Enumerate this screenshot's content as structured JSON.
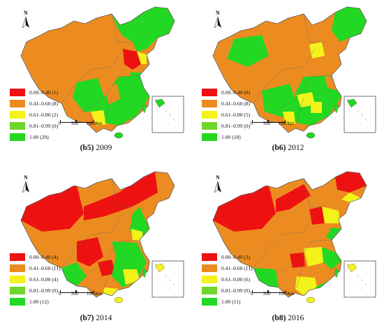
{
  "colors": {
    "c1": "#ee1111",
    "c2": "#ec8c20",
    "c3": "#f3f31a",
    "c4": "#6fd62a",
    "c5": "#22d822",
    "boundary": "#5a5a5a",
    "water": "#ffffff"
  },
  "north_label": "N",
  "panels": [
    {
      "caption_id": "(b5)",
      "caption_year": "2009",
      "legend": [
        {
          "label": "0.00–0.40 (1)",
          "color": "#ee1111"
        },
        {
          "label": "0.41–0.60 (8)",
          "color": "#ec8c20"
        },
        {
          "label": "0.61–0.80 (2)",
          "color": "#f3f31a"
        },
        {
          "label": "0.81–0.99 (0)",
          "color": "#6fd62a"
        },
        {
          "label": "1.00 (20)",
          "color": "#22d822"
        }
      ],
      "scale": [
        "0",
        "500",
        "1000km"
      ]
    },
    {
      "caption_id": "(b6)",
      "caption_year": "2012",
      "legend": [
        {
          "label": "0.00–0.40 (0)",
          "color": "#ee1111"
        },
        {
          "label": "0.41–0.60 (8)",
          "color": "#ec8c20"
        },
        {
          "label": "0.61–0.80 (5)",
          "color": "#f3f31a"
        },
        {
          "label": "0.81–0.99 (0)",
          "color": "#6fd62a"
        },
        {
          "label": "1.00 (18)",
          "color": "#22d822"
        }
      ],
      "scale": [
        "0",
        "500",
        "1000km"
      ]
    },
    {
      "caption_id": "(b7)",
      "caption_year": "2014",
      "legend": [
        {
          "label": "0.00–0.40 (4)",
          "color": "#ee1111"
        },
        {
          "label": "0.41–0.60 (11)",
          "color": "#ec8c20"
        },
        {
          "label": "0.61–0.80 (4)",
          "color": "#f3f31a"
        },
        {
          "label": "0.81–0.99 (0)",
          "color": "#6fd62a"
        },
        {
          "label": "1.00 (12)",
          "color": "#22d822"
        }
      ],
      "scale": [
        "0",
        "500",
        "1000km"
      ]
    },
    {
      "caption_id": "(b8)",
      "caption_year": "2016",
      "legend": [
        {
          "label": "0.00–0.40 (3)",
          "color": "#ee1111"
        },
        {
          "label": "0.41–0.60 (11)",
          "color": "#ec8c20"
        },
        {
          "label": "0.61–0.80 (6)",
          "color": "#f3f31a"
        },
        {
          "label": "0.81–0.99 (0)",
          "color": "#6fd62a"
        },
        {
          "label": "1.00 (11)",
          "color": "#22d822"
        }
      ],
      "scale": [
        "0",
        "500",
        "1000km"
      ]
    }
  ]
}
